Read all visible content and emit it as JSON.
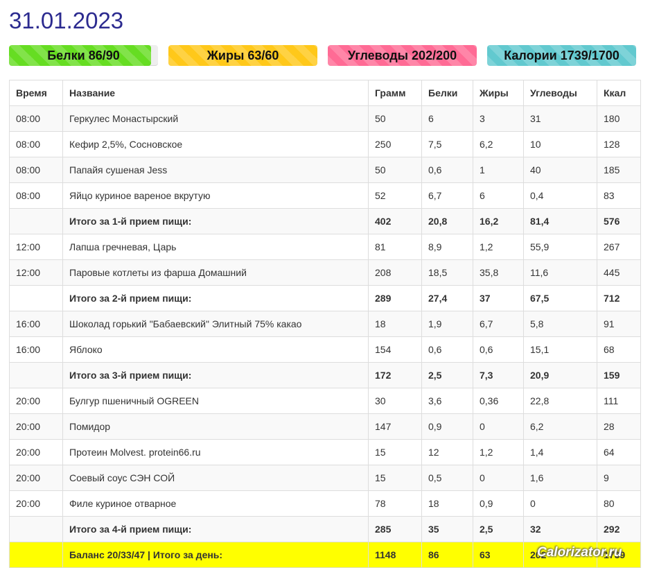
{
  "date": "31.01.2023",
  "progress": [
    {
      "label": "Белки 86/90",
      "fraction": 0.955,
      "color": "#66dd22"
    },
    {
      "label": "Жиры 63/60",
      "fraction": 1.0,
      "color": "#ffc81a"
    },
    {
      "label": "Углеводы 202/200",
      "fraction": 1.0,
      "color": "#ff6b95"
    },
    {
      "label": "Калории 1739/1700",
      "fraction": 1.0,
      "color": "#62c9cf"
    }
  ],
  "table": {
    "headers": [
      "Время",
      "Название",
      "Грамм",
      "Белки",
      "Жиры",
      "Углеводы",
      "Ккал"
    ],
    "rows": [
      {
        "type": "item",
        "cells": [
          "08:00",
          "Геркулес Монастырский",
          "50",
          "6",
          "3",
          "31",
          "180"
        ]
      },
      {
        "type": "item",
        "cells": [
          "08:00",
          "Кефир 2,5%, Сосновское",
          "250",
          "7,5",
          "6,2",
          "10",
          "128"
        ]
      },
      {
        "type": "item",
        "cells": [
          "08:00",
          "Папайя сушеная Jess",
          "50",
          "0,6",
          "1",
          "40",
          "185"
        ]
      },
      {
        "type": "item",
        "cells": [
          "08:00",
          "Яйцо куриное вареное вкрутую",
          "52",
          "6,7",
          "6",
          "0,4",
          "83"
        ]
      },
      {
        "type": "total",
        "cells": [
          "",
          "Итого за 1-й прием пищи:",
          "402",
          "20,8",
          "16,2",
          "81,4",
          "576"
        ]
      },
      {
        "type": "item",
        "cells": [
          "12:00",
          "Лапша гречневая, Царь",
          "81",
          "8,9",
          "1,2",
          "55,9",
          "267"
        ]
      },
      {
        "type": "item",
        "cells": [
          "12:00",
          "Паровые котлеты из фарша Домашний",
          "208",
          "18,5",
          "35,8",
          "11,6",
          "445"
        ]
      },
      {
        "type": "total",
        "cells": [
          "",
          "Итого за 2-й прием пищи:",
          "289",
          "27,4",
          "37",
          "67,5",
          "712"
        ]
      },
      {
        "type": "item",
        "cells": [
          "16:00",
          "Шоколад горький \"Бабаевский\" Элитный 75% какао",
          "18",
          "1,9",
          "6,7",
          "5,8",
          "91"
        ]
      },
      {
        "type": "item",
        "cells": [
          "16:00",
          "Яблоко",
          "154",
          "0,6",
          "0,6",
          "15,1",
          "68"
        ]
      },
      {
        "type": "total",
        "cells": [
          "",
          "Итого за 3-й прием пищи:",
          "172",
          "2,5",
          "7,3",
          "20,9",
          "159"
        ]
      },
      {
        "type": "item",
        "cells": [
          "20:00",
          "Булгур пшеничный OGREEN",
          "30",
          "3,6",
          "0,36",
          "22,8",
          "111"
        ]
      },
      {
        "type": "item",
        "cells": [
          "20:00",
          "Помидор",
          "147",
          "0,9",
          "0",
          "6,2",
          "28"
        ]
      },
      {
        "type": "item",
        "cells": [
          "20:00",
          "Протеин Molvest. protein66.ru",
          "15",
          "12",
          "1,2",
          "1,4",
          "64"
        ]
      },
      {
        "type": "item",
        "cells": [
          "20:00",
          "Соевый соус СЭН СОЙ",
          "15",
          "0,5",
          "0",
          "1,6",
          "9"
        ]
      },
      {
        "type": "item",
        "cells": [
          "20:00",
          "Филе куриное отварное",
          "78",
          "18",
          "0,9",
          "0",
          "80"
        ]
      },
      {
        "type": "total",
        "cells": [
          "",
          "Итого за 4-й прием пищи:",
          "285",
          "35",
          "2,5",
          "32",
          "292"
        ]
      },
      {
        "type": "day",
        "cells": [
          "",
          "Баланс 20/33/47 | Итого за день:",
          "1148",
          "86",
          "63",
          "202",
          "1739"
        ]
      }
    ]
  },
  "watermark": "Calorizator.ru"
}
